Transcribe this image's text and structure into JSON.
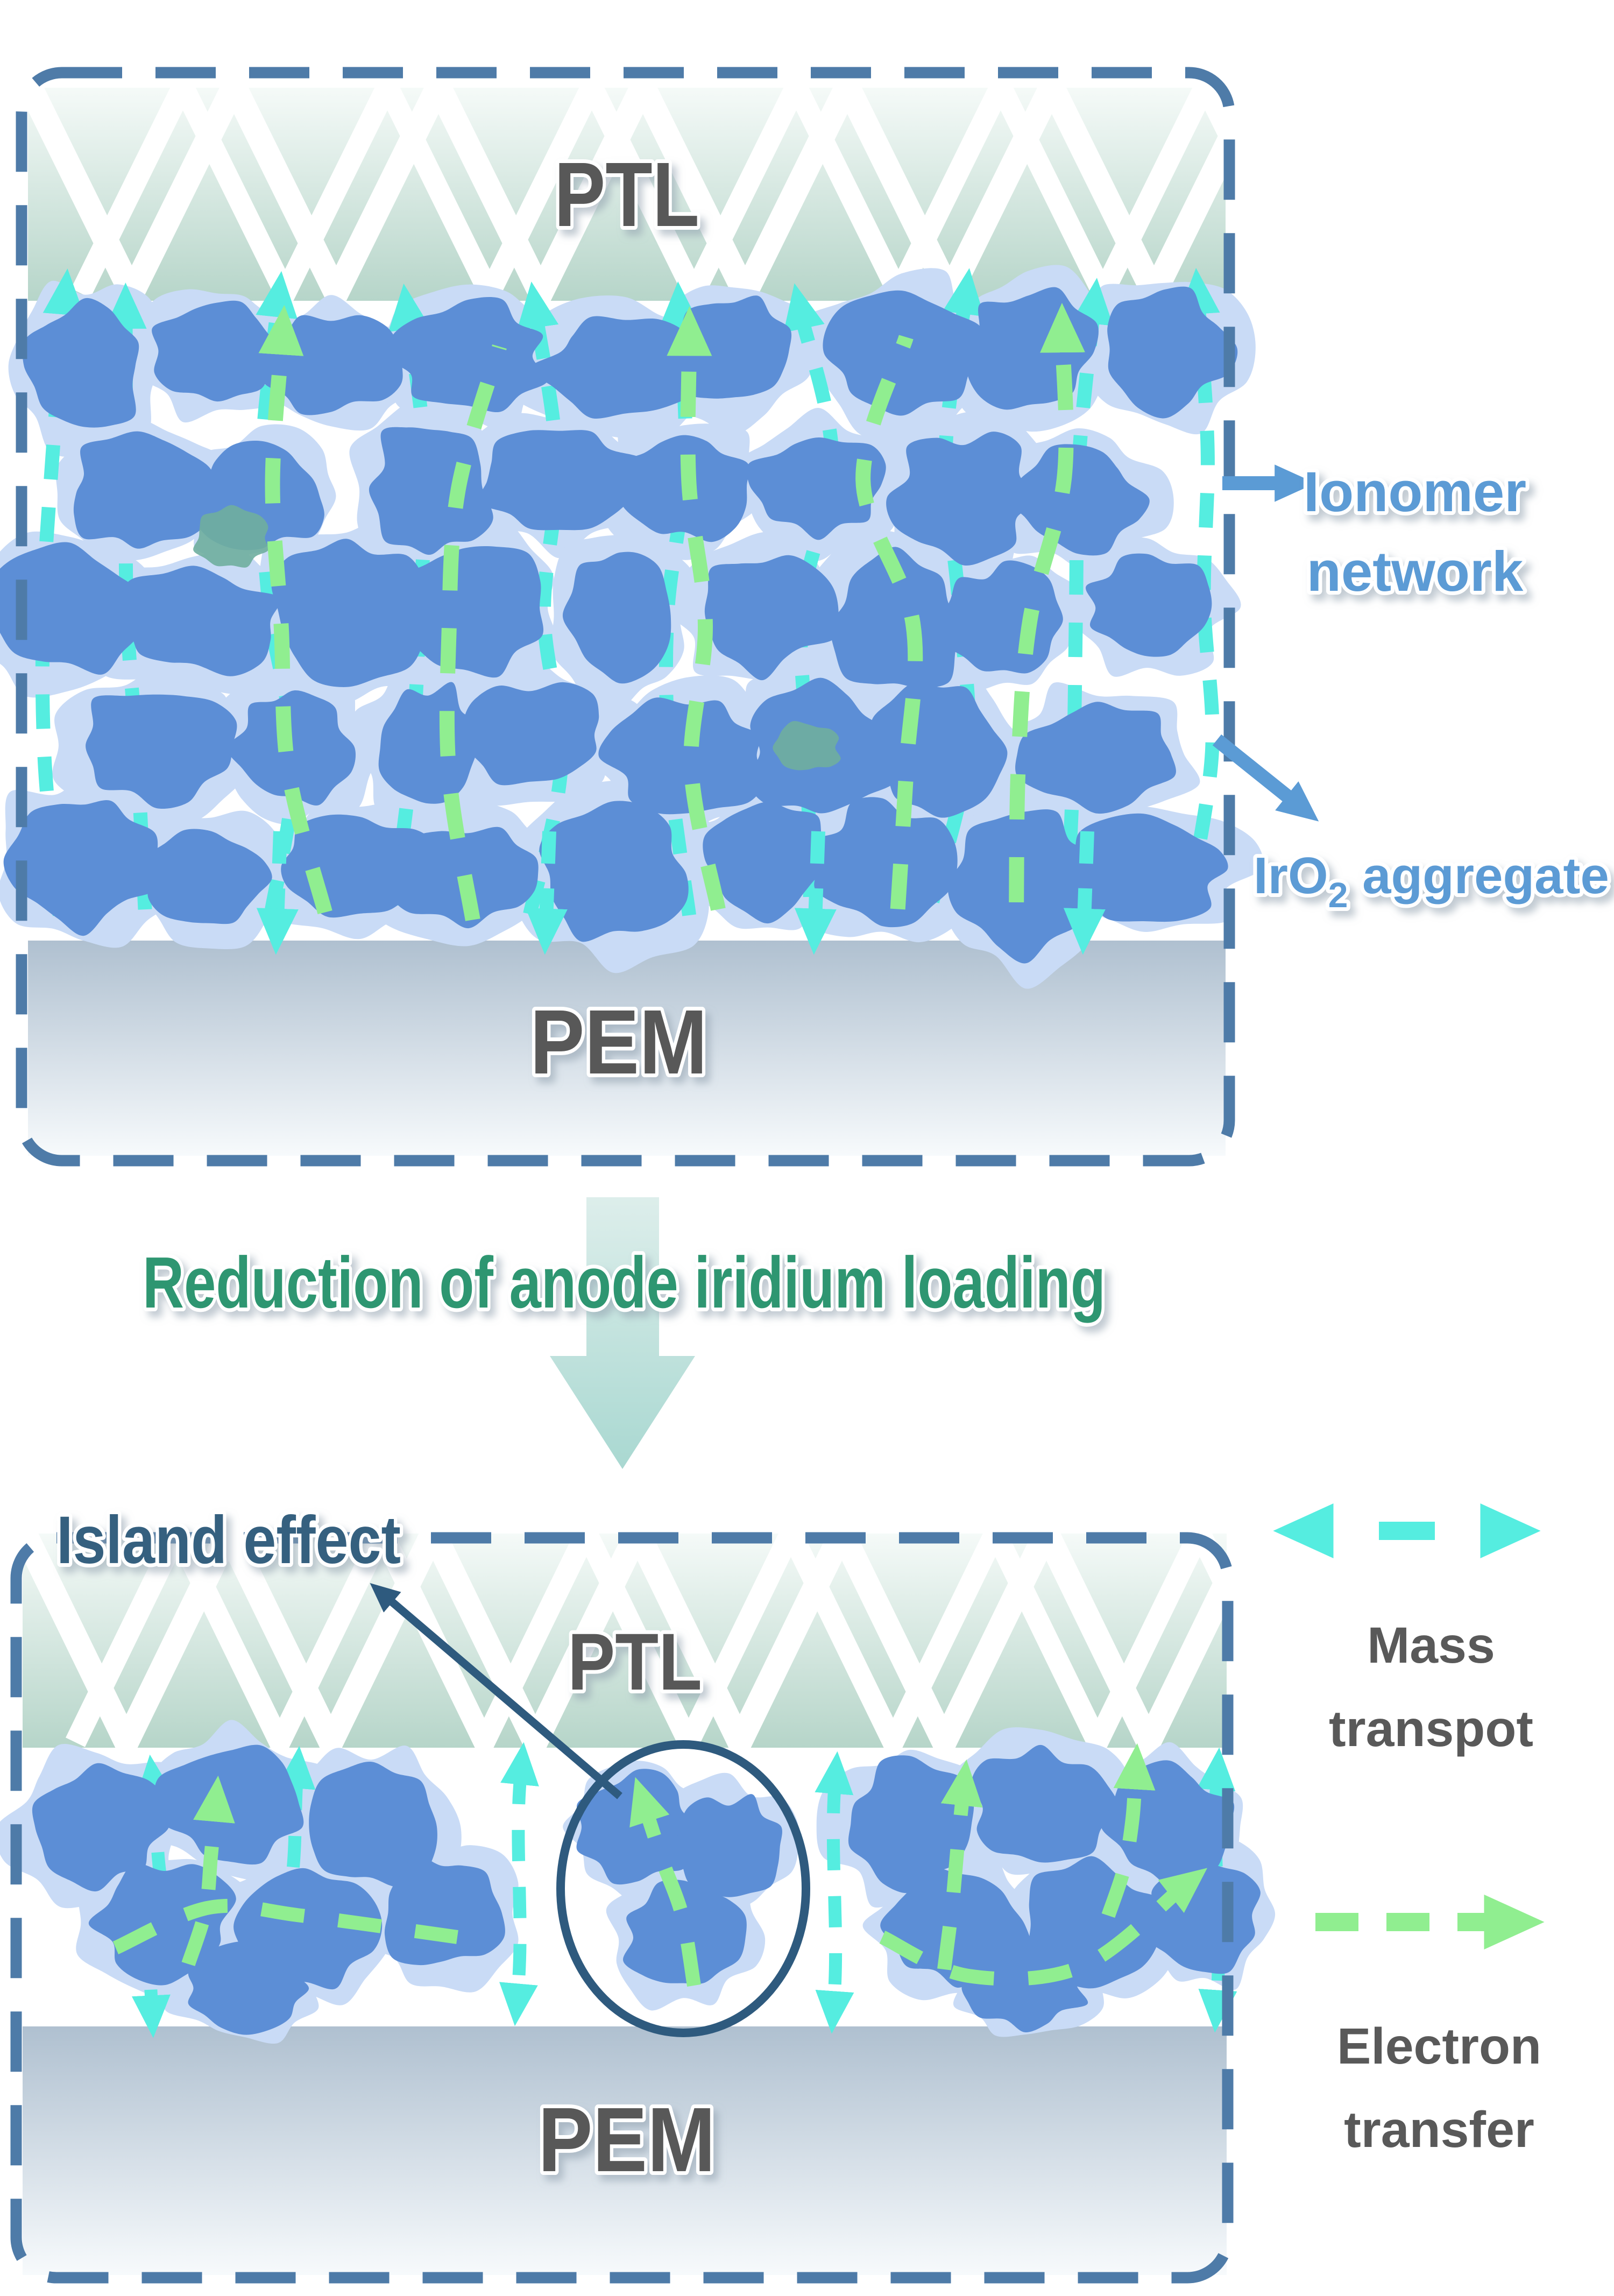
{
  "figure": {
    "top_panel": {
      "ptl_label": "PTL",
      "pem_label": "PEM",
      "callouts": {
        "ionomer_line1": "Ionomer",
        "ionomer_line2": "network",
        "iro2_prefix": "IrO",
        "iro2_sub": "2",
        "iro2_suffix": " aggregate"
      }
    },
    "transition_text": "Reduction of anode iridium loading",
    "bottom_panel": {
      "island_label": "Island effect",
      "ptl_label": "PTL",
      "pem_label": "PEM"
    },
    "legend": {
      "mass_line1": "Mass",
      "mass_line2": "transpot",
      "electron_line1": "Electron",
      "electron_line2": "transfer"
    }
  },
  "colors": {
    "panel_border": "#4E7BA8",
    "iro2_blob": "#5C8ED6",
    "ionomer_halo": "#C9DBF6",
    "mass_transport_cyan": "#55EDE0",
    "electron_transfer_green": "#90EE90",
    "ptl_gradient_top": "#F5FAF8",
    "ptl_gradient_bottom": "#B6D5C9",
    "pem_gradient_top": "#AFC0D0",
    "pem_gradient_bottom": "#F7FAFC",
    "label_gray": "#595959",
    "label_blue": "#5B9BD5",
    "reduction_green": "#2E9671",
    "island_navy": "#35607F",
    "annotation_navy": "#2E5A7E",
    "big_arrow_top": "#DDEEEB",
    "big_arrow_bottom": "#A9D8D1",
    "fiber_white": "#FFFFFF",
    "teal_patch": "#6FAE9E"
  }
}
